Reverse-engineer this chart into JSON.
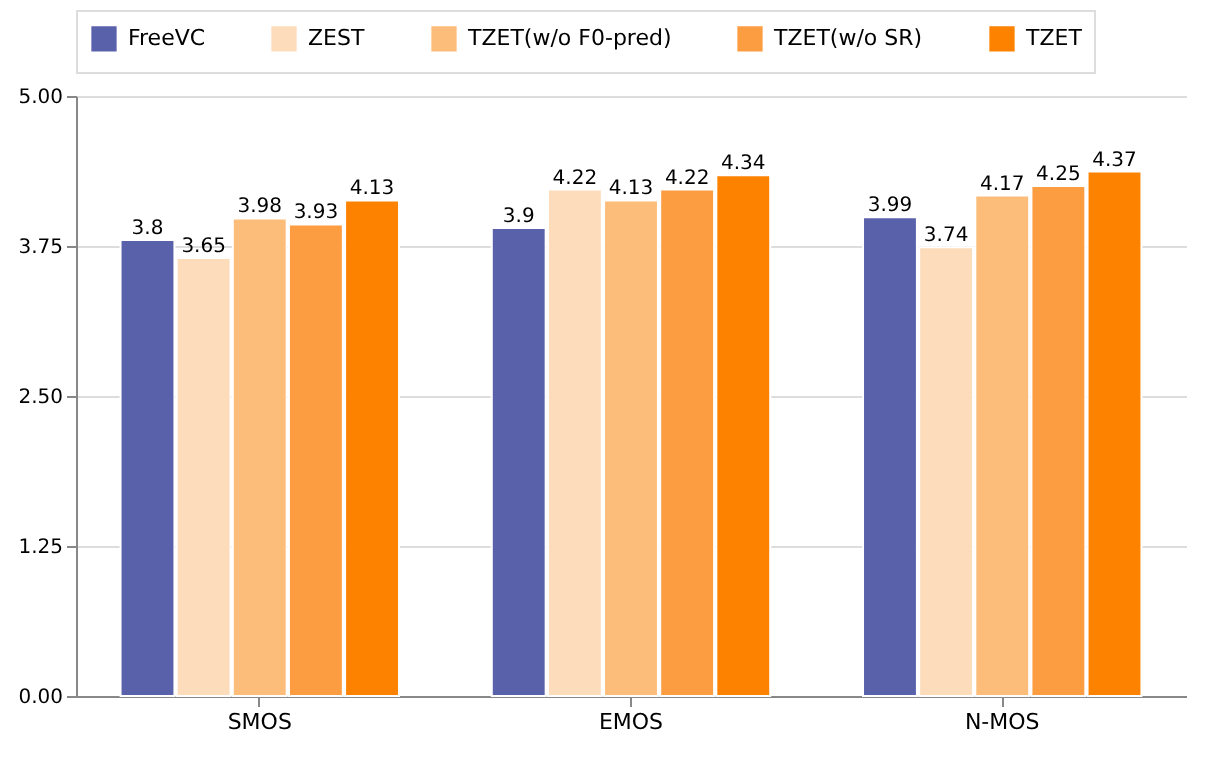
{
  "chart_data": {
    "type": "bar",
    "categories": [
      "SMOS",
      "EMOS",
      "N-MOS"
    ],
    "series": [
      {
        "name": "FreeVC",
        "color": "#5a61ab",
        "values": [
          3.8,
          3.9,
          3.99
        ]
      },
      {
        "name": "ZEST",
        "color": "#fddcbb",
        "values": [
          3.65,
          4.22,
          3.74
        ]
      },
      {
        "name": "TZET(w/o F0-pred)",
        "color": "#fdbd7a",
        "values": [
          3.98,
          4.13,
          4.17
        ]
      },
      {
        "name": "TZET(w/o SR)",
        "color": "#fd9d42",
        "values": [
          3.93,
          4.22,
          4.25
        ]
      },
      {
        "name": "TZET",
        "color": "#fd8200",
        "values": [
          4.13,
          4.34,
          4.37
        ]
      }
    ],
    "ylim": [
      0,
      5
    ],
    "yticks": [
      {
        "value": 0,
        "label": "0.00"
      },
      {
        "value": 1.25,
        "label": "1.25"
      },
      {
        "value": 2.5,
        "label": "2.50"
      },
      {
        "value": 3.75,
        "label": "3.75"
      },
      {
        "value": 5,
        "label": "5.00"
      }
    ],
    "grid": "y",
    "legend": "top",
    "data_labels": true
  }
}
